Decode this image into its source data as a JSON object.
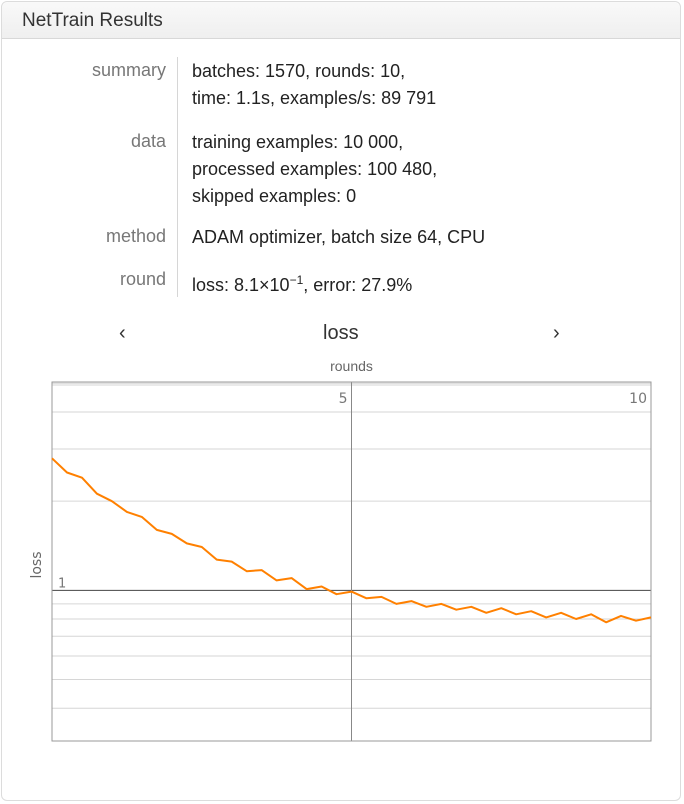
{
  "window": {
    "title": "NetTrain Results"
  },
  "rows": [
    {
      "label": "summary",
      "lines": [
        "batches: 1570, rounds: 10,",
        "time: 1.1s, examples/s: 89 791"
      ]
    },
    {
      "label": "data",
      "lines": [
        "training examples: 10 000,",
        "processed examples: 100 480,",
        "skipped examples: 0"
      ]
    },
    {
      "label": "method",
      "lines": [
        "ADAM optimizer, batch size 64, CPU"
      ]
    },
    {
      "label": "round",
      "loss_prefix": "loss: 8.1×10",
      "loss_exp": "−1",
      "error_text": ", error: 27.9%"
    }
  ],
  "plot_nav": {
    "prev_icon": "chevron-left-icon",
    "prev": "‹",
    "current": "loss",
    "next_icon": "chevron-right-icon",
    "next": "›"
  },
  "chart_data": {
    "type": "line",
    "xlabel": "rounds",
    "ylabel": "loss",
    "xlim": [
      0,
      10
    ],
    "ylim": [
      0.31,
      5.05
    ],
    "yscale": "log",
    "grid": true,
    "x_ticks": [
      5,
      10
    ],
    "x_tick_labels": [
      "5",
      "10"
    ],
    "y_tick_labels": [
      "1"
    ],
    "y_gridlines": [
      0.4,
      0.5,
      0.6,
      0.7,
      0.8,
      0.9,
      1,
      2,
      3,
      4,
      5
    ],
    "line_color": "#ff8000",
    "x": [
      0,
      0.25,
      0.5,
      0.75,
      1,
      1.25,
      1.5,
      1.75,
      2,
      2.25,
      2.5,
      2.75,
      3,
      3.25,
      3.5,
      3.75,
      4,
      4.25,
      4.5,
      4.75,
      5,
      5.25,
      5.5,
      5.75,
      6,
      6.25,
      6.5,
      6.75,
      7,
      7.25,
      7.5,
      7.75,
      8,
      8.25,
      8.5,
      8.75,
      9,
      9.25,
      9.5,
      9.75,
      10
    ],
    "values": [
      2.79,
      2.5,
      2.4,
      2.12,
      2.0,
      1.84,
      1.77,
      1.6,
      1.55,
      1.44,
      1.4,
      1.27,
      1.25,
      1.16,
      1.17,
      1.08,
      1.1,
      1.01,
      1.03,
      0.97,
      0.99,
      0.94,
      0.95,
      0.9,
      0.92,
      0.88,
      0.9,
      0.86,
      0.88,
      0.84,
      0.87,
      0.83,
      0.85,
      0.81,
      0.84,
      0.8,
      0.83,
      0.78,
      0.82,
      0.79,
      0.81
    ]
  }
}
